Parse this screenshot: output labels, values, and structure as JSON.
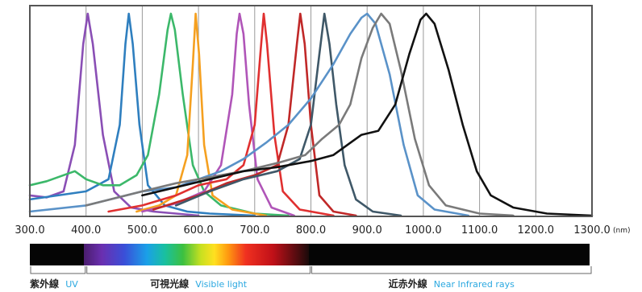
{
  "chart_data": {
    "type": "line",
    "title": "",
    "xlabel": "",
    "ylabel": "",
    "x_unit": "(nm)",
    "xlim": [
      300,
      1300
    ],
    "ylim": [
      0,
      1
    ],
    "grid": "vertical",
    "x_ticks": [
      "300.0",
      "400.0",
      "500.0",
      "600.0",
      "700.0",
      "800.0",
      "900.0",
      "1000.0",
      "1100.0",
      "1200.0",
      "1300.0"
    ],
    "series": [
      {
        "color": "#8a4fb5",
        "points": [
          [
            300,
            0.1
          ],
          [
            330,
            0.09
          ],
          [
            360,
            0.12
          ],
          [
            380,
            0.35
          ],
          [
            395,
            0.85
          ],
          [
            403,
            1.0
          ],
          [
            412,
            0.85
          ],
          [
            430,
            0.4
          ],
          [
            450,
            0.12
          ],
          [
            480,
            0.04
          ],
          [
            520,
            0.02
          ],
          [
            560,
            0.01
          ],
          [
            600,
            0.0
          ]
        ]
      },
      {
        "color": "#2f7fbf",
        "points": [
          [
            300,
            0.08
          ],
          [
            350,
            0.1
          ],
          [
            400,
            0.12
          ],
          [
            440,
            0.18
          ],
          [
            460,
            0.45
          ],
          [
            470,
            0.85
          ],
          [
            476,
            1.0
          ],
          [
            483,
            0.85
          ],
          [
            495,
            0.45
          ],
          [
            510,
            0.15
          ],
          [
            540,
            0.05
          ],
          [
            580,
            0.02
          ],
          [
            620,
            0.01
          ],
          [
            700,
            0.0
          ]
        ]
      },
      {
        "color": "#3cb86a",
        "points": [
          [
            300,
            0.15
          ],
          [
            330,
            0.17
          ],
          [
            360,
            0.2
          ],
          [
            380,
            0.22
          ],
          [
            400,
            0.18
          ],
          [
            430,
            0.15
          ],
          [
            460,
            0.15
          ],
          [
            490,
            0.2
          ],
          [
            510,
            0.3
          ],
          [
            530,
            0.6
          ],
          [
            545,
            0.92
          ],
          [
            551,
            1.0
          ],
          [
            558,
            0.92
          ],
          [
            572,
            0.6
          ],
          [
            590,
            0.25
          ],
          [
            610,
            0.12
          ],
          [
            640,
            0.05
          ],
          [
            700,
            0.01
          ],
          [
            760,
            0.0
          ]
        ]
      },
      {
        "color": "#f5a020",
        "points": [
          [
            490,
            0.02
          ],
          [
            530,
            0.05
          ],
          [
            560,
            0.1
          ],
          [
            580,
            0.3
          ],
          [
            590,
            0.75
          ],
          [
            595,
            1.0
          ],
          [
            601,
            0.8
          ],
          [
            610,
            0.35
          ],
          [
            625,
            0.1
          ],
          [
            660,
            0.03
          ],
          [
            720,
            0.0
          ]
        ]
      },
      {
        "color": "#b055b8",
        "points": [
          [
            500,
            0.02
          ],
          [
            560,
            0.06
          ],
          [
            610,
            0.12
          ],
          [
            640,
            0.25
          ],
          [
            660,
            0.6
          ],
          [
            668,
            0.9
          ],
          [
            673,
            1.0
          ],
          [
            680,
            0.9
          ],
          [
            690,
            0.55
          ],
          [
            705,
            0.18
          ],
          [
            730,
            0.04
          ],
          [
            770,
            0.0
          ]
        ]
      },
      {
        "color": "#e03030",
        "points": [
          [
            440,
            0.02
          ],
          [
            500,
            0.05
          ],
          [
            560,
            0.1
          ],
          [
            600,
            0.15
          ],
          [
            650,
            0.18
          ],
          [
            680,
            0.25
          ],
          [
            700,
            0.45
          ],
          [
            710,
            0.8
          ],
          [
            716,
            1.0
          ],
          [
            722,
            0.85
          ],
          [
            735,
            0.4
          ],
          [
            750,
            0.12
          ],
          [
            780,
            0.03
          ],
          [
            840,
            0.0
          ]
        ]
      },
      {
        "color": "#c02828",
        "points": [
          [
            520,
            0.03
          ],
          [
            600,
            0.1
          ],
          [
            650,
            0.16
          ],
          [
            700,
            0.2
          ],
          [
            740,
            0.25
          ],
          [
            760,
            0.45
          ],
          [
            775,
            0.85
          ],
          [
            781,
            1.0
          ],
          [
            789,
            0.85
          ],
          [
            800,
            0.45
          ],
          [
            815,
            0.1
          ],
          [
            840,
            0.02
          ],
          [
            880,
            0.0
          ]
        ]
      },
      {
        "color": "#3f5868",
        "points": [
          [
            560,
            0.05
          ],
          [
            620,
            0.12
          ],
          [
            680,
            0.18
          ],
          [
            740,
            0.22
          ],
          [
            780,
            0.28
          ],
          [
            800,
            0.45
          ],
          [
            815,
            0.8
          ],
          [
            824,
            1.0
          ],
          [
            833,
            0.85
          ],
          [
            845,
            0.55
          ],
          [
            860,
            0.25
          ],
          [
            880,
            0.08
          ],
          [
            910,
            0.02
          ],
          [
            960,
            0.0
          ]
        ]
      },
      {
        "color": "#5a92c8",
        "points": [
          [
            300,
            0.02
          ],
          [
            400,
            0.05
          ],
          [
            500,
            0.12
          ],
          [
            560,
            0.14
          ],
          [
            600,
            0.18
          ],
          [
            640,
            0.22
          ],
          [
            680,
            0.28
          ],
          [
            720,
            0.36
          ],
          [
            760,
            0.45
          ],
          [
            800,
            0.58
          ],
          [
            840,
            0.75
          ],
          [
            870,
            0.9
          ],
          [
            890,
            0.98
          ],
          [
            900,
            1.0
          ],
          [
            915,
            0.95
          ],
          [
            940,
            0.7
          ],
          [
            965,
            0.35
          ],
          [
            990,
            0.1
          ],
          [
            1020,
            0.03
          ],
          [
            1080,
            0.0
          ]
        ]
      },
      {
        "color": "#7a7a7a",
        "points": [
          [
            400,
            0.05
          ],
          [
            500,
            0.12
          ],
          [
            560,
            0.16
          ],
          [
            620,
            0.19
          ],
          [
            680,
            0.22
          ],
          [
            740,
            0.26
          ],
          [
            790,
            0.3
          ],
          [
            820,
            0.38
          ],
          [
            850,
            0.45
          ],
          [
            870,
            0.55
          ],
          [
            890,
            0.78
          ],
          [
            910,
            0.93
          ],
          [
            925,
            1.0
          ],
          [
            940,
            0.95
          ],
          [
            960,
            0.72
          ],
          [
            985,
            0.38
          ],
          [
            1010,
            0.15
          ],
          [
            1040,
            0.05
          ],
          [
            1100,
            0.01
          ],
          [
            1160,
            0.0
          ]
        ]
      },
      {
        "color": "#111111",
        "points": [
          [
            500,
            0.1
          ],
          [
            560,
            0.14
          ],
          [
            620,
            0.18
          ],
          [
            680,
            0.22
          ],
          [
            740,
            0.24
          ],
          [
            800,
            0.27
          ],
          [
            840,
            0.3
          ],
          [
            870,
            0.36
          ],
          [
            890,
            0.4
          ],
          [
            920,
            0.42
          ],
          [
            950,
            0.55
          ],
          [
            975,
            0.8
          ],
          [
            995,
            0.97
          ],
          [
            1005,
            1.0
          ],
          [
            1020,
            0.95
          ],
          [
            1045,
            0.72
          ],
          [
            1070,
            0.45
          ],
          [
            1095,
            0.22
          ],
          [
            1120,
            0.1
          ],
          [
            1160,
            0.04
          ],
          [
            1220,
            0.01
          ],
          [
            1300,
            0.0
          ]
        ]
      }
    ],
    "spectrum_regions": [
      {
        "jp": "紫外線",
        "en": "UV",
        "from": 300,
        "to": 400
      },
      {
        "jp": "可視光線",
        "en": "Visible light",
        "from": 400,
        "to": 800
      },
      {
        "jp": "近赤外線",
        "en": "Near Infrared rays",
        "from": 800,
        "to": 1300
      }
    ]
  },
  "colors": {
    "axis": "#555555",
    "grid": "#9a9a9a",
    "region_en": "#2aa8e0"
  }
}
